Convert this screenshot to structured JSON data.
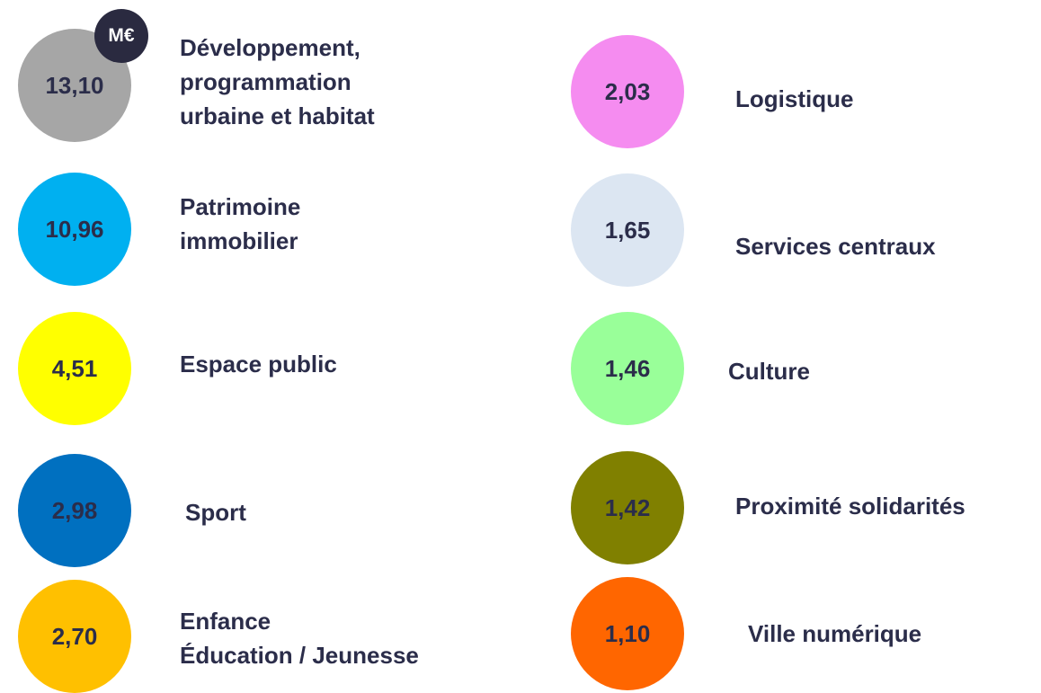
{
  "unit_badge": "M€",
  "items": [
    {
      "value": "13,10",
      "label": [
        "Développement,",
        "programmation",
        "urbaine et habitat"
      ],
      "color": "#a6a6a6"
    },
    {
      "value": "10,96",
      "label": [
        "Patrimoine",
        "immobilier"
      ],
      "color": "#00b0f0"
    },
    {
      "value": "4,51",
      "label": [
        "Espace public"
      ],
      "color": "#ffff00"
    },
    {
      "value": "2,98",
      "label": [
        "Sport"
      ],
      "color": "#0070c0"
    },
    {
      "value": "2,70",
      "label": [
        "Enfance",
        "Éducation / Jeunesse"
      ],
      "color": "#ffc000"
    },
    {
      "value": "2,03",
      "label": [
        "Logistique"
      ],
      "color": "#f58cf0"
    },
    {
      "value": "1,65",
      "label": [
        "Services centraux"
      ],
      "color": "#dce6f2"
    },
    {
      "value": "1,46",
      "label": [
        "Culture"
      ],
      "color": "#99ff99"
    },
    {
      "value": "1,42",
      "label": [
        "Proximité solidarités"
      ],
      "color": "#808000"
    },
    {
      "value": "1,10",
      "label": [
        "Ville numérique"
      ],
      "color": "#ff6600"
    }
  ]
}
